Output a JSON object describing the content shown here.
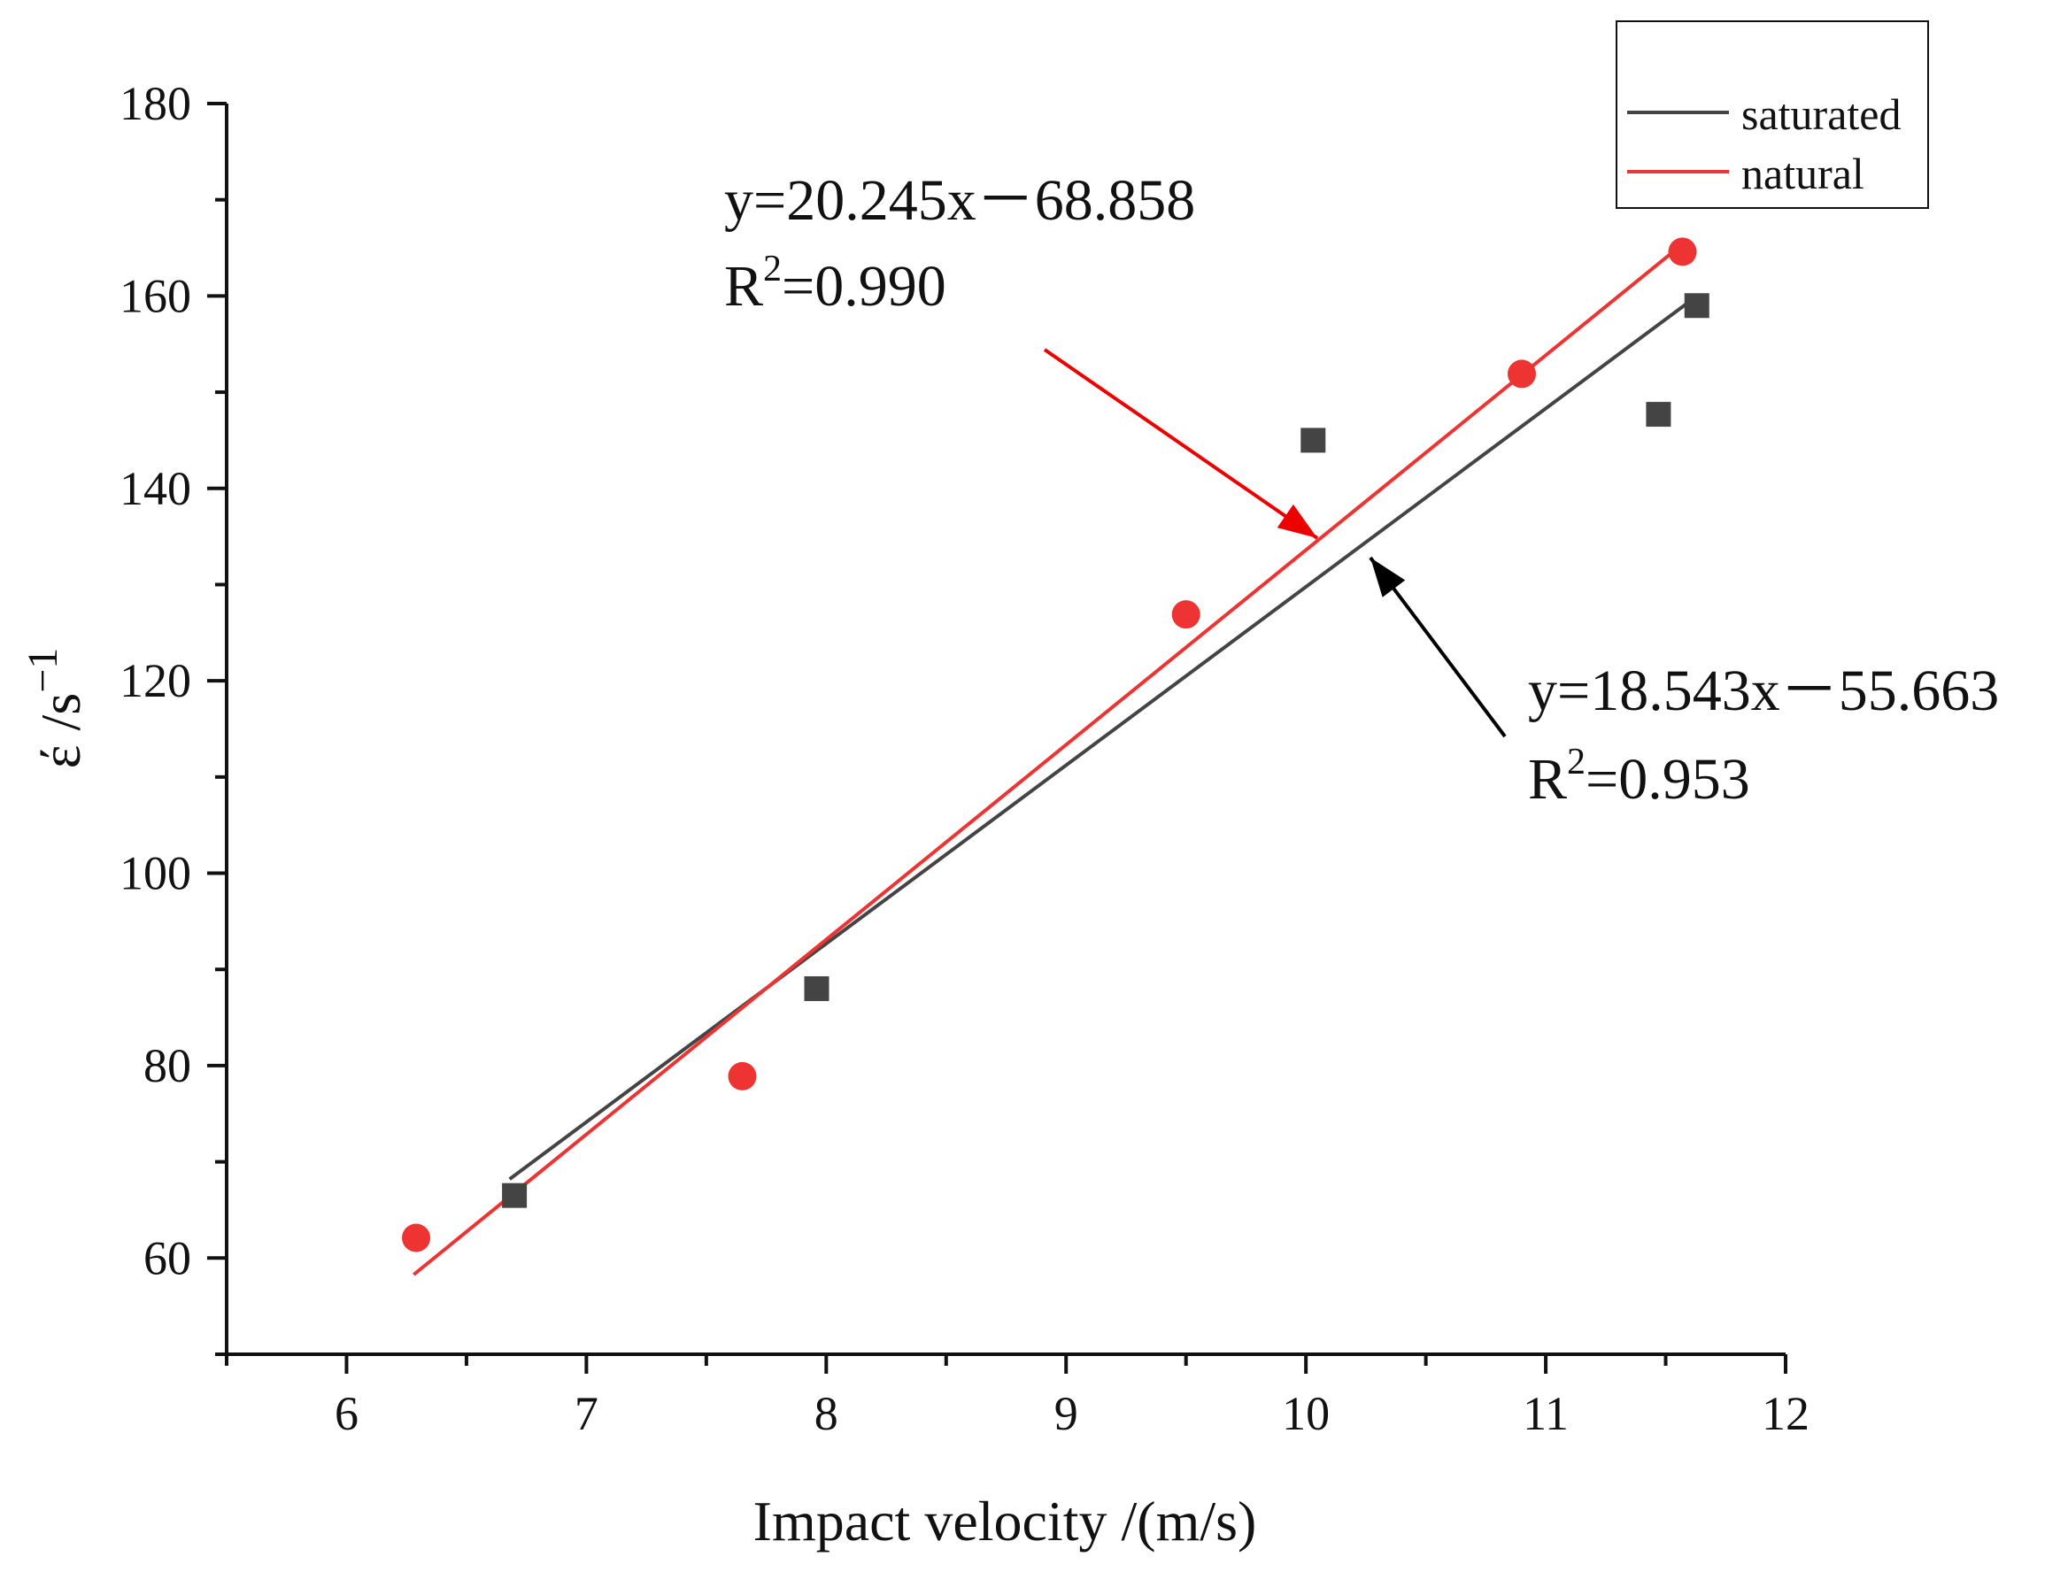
{
  "chart_data": {
    "type": "scatter",
    "xlabel": "Impact velocity /(m/s)",
    "ylabel": "έ /s",
    "ylabel_superscript": "−1",
    "xlim": [
      5.5,
      12
    ],
    "ylim": [
      50,
      180
    ],
    "x_ticks": [
      6,
      7,
      8,
      9,
      10,
      11,
      12
    ],
    "y_ticks": [
      60,
      80,
      100,
      120,
      140,
      160,
      180
    ],
    "grid": false,
    "legend_position": "top-right",
    "series": [
      {
        "name": "saturated",
        "color": "#444444",
        "marker": "square",
        "points": [
          {
            "x": 6.7,
            "y": 66.5
          },
          {
            "x": 7.96,
            "y": 88
          },
          {
            "x": 10.03,
            "y": 145
          },
          {
            "x": 11.47,
            "y": 147.7
          },
          {
            "x": 11.63,
            "y": 159
          }
        ],
        "fit": {
          "slope": 18.543,
          "intercept": -55.663,
          "x_range": [
            6.68,
            11.6
          ]
        }
      },
      {
        "name": "natural",
        "color": "#ee3333",
        "marker": "circle",
        "points": [
          {
            "x": 6.29,
            "y": 62.1
          },
          {
            "x": 7.65,
            "y": 78.9
          },
          {
            "x": 9.5,
            "y": 126.9
          },
          {
            "x": 10.9,
            "y": 151.9
          },
          {
            "x": 11.57,
            "y": 164.6
          }
        ],
        "fit": {
          "slope": 20.245,
          "intercept": -68.858,
          "x_range": [
            6.28,
            11.55
          ]
        }
      }
    ],
    "annotations": [
      {
        "series": "natural",
        "equation": "y=20.245x－68.858",
        "r2_prefix": "R",
        "r2_sup": "2",
        "r2_value": "=0.990",
        "color": "#ee0000"
      },
      {
        "series": "saturated",
        "equation": "y=18.543x－55.663",
        "r2_prefix": "R",
        "r2_sup": "2",
        "r2_value": "=0.953",
        "color": "#000000"
      }
    ]
  }
}
